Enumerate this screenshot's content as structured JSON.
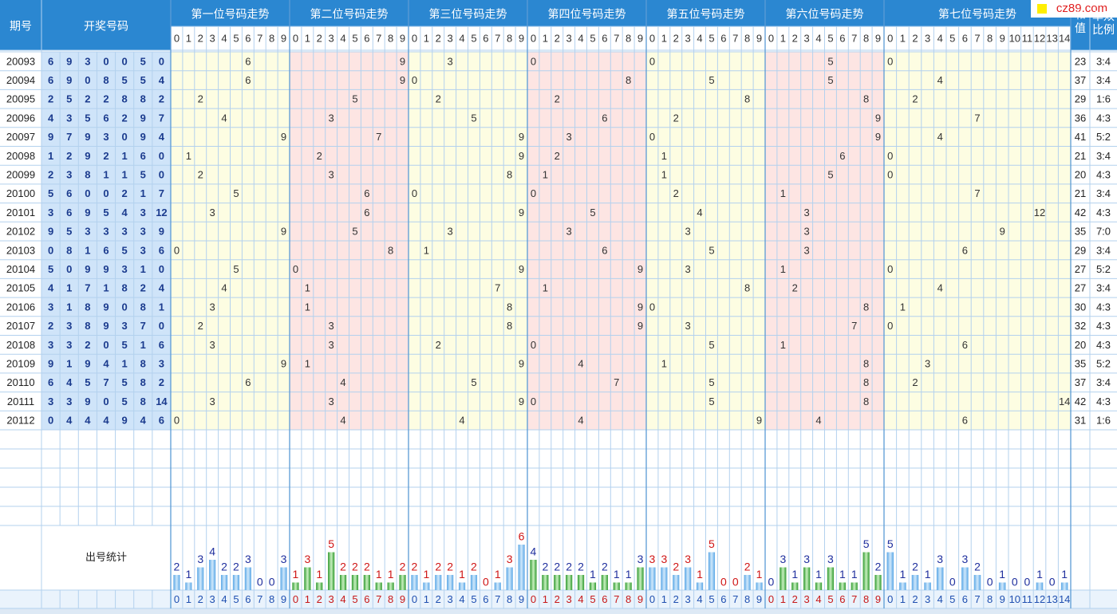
{
  "header": {
    "issue": "期号",
    "draw": "开奖号码",
    "sections": [
      "第一位号码走势",
      "第二位号码走势",
      "第三位号码走势",
      "第四位号码走势",
      "第五位号码走势",
      "第六位号码走势",
      "第七位号码走势"
    ],
    "sum": "和值",
    "ratio": "单双比例"
  },
  "column_digits": [
    [
      0,
      1,
      2,
      3,
      4,
      5,
      6,
      7,
      8,
      9
    ],
    [
      0,
      1,
      2,
      3,
      4,
      5,
      6,
      7,
      8,
      9
    ],
    [
      0,
      1,
      2,
      3,
      4,
      5,
      6,
      7,
      8,
      9
    ],
    [
      0,
      1,
      2,
      3,
      4,
      5,
      6,
      7,
      8,
      9
    ],
    [
      0,
      1,
      2,
      3,
      4,
      5,
      6,
      7,
      8,
      9
    ],
    [
      0,
      1,
      2,
      3,
      4,
      5,
      6,
      7,
      8,
      9
    ],
    [
      0,
      1,
      2,
      3,
      4,
      5,
      6,
      7,
      8,
      9,
      10,
      11,
      12,
      13,
      14
    ]
  ],
  "rows": [
    {
      "issue": "20093",
      "numbers": [
        6,
        9,
        3,
        0,
        0,
        5,
        0
      ],
      "sum": 23,
      "ratio": "3:4"
    },
    {
      "issue": "20094",
      "numbers": [
        6,
        9,
        0,
        8,
        5,
        5,
        4
      ],
      "sum": 37,
      "ratio": "3:4"
    },
    {
      "issue": "20095",
      "numbers": [
        2,
        5,
        2,
        2,
        8,
        8,
        2
      ],
      "sum": 29,
      "ratio": "1:6"
    },
    {
      "issue": "20096",
      "numbers": [
        4,
        3,
        5,
        6,
        2,
        9,
        7
      ],
      "sum": 36,
      "ratio": "4:3"
    },
    {
      "issue": "20097",
      "numbers": [
        9,
        7,
        9,
        3,
        0,
        9,
        4
      ],
      "sum": 41,
      "ratio": "5:2"
    },
    {
      "issue": "20098",
      "numbers": [
        1,
        2,
        9,
        2,
        1,
        6,
        0
      ],
      "sum": 21,
      "ratio": "3:4"
    },
    {
      "issue": "20099",
      "numbers": [
        2,
        3,
        8,
        1,
        1,
        5,
        0
      ],
      "sum": 20,
      "ratio": "4:3"
    },
    {
      "issue": "20100",
      "numbers": [
        5,
        6,
        0,
        0,
        2,
        1,
        7
      ],
      "sum": 21,
      "ratio": "3:4"
    },
    {
      "issue": "20101",
      "numbers": [
        3,
        6,
        9,
        5,
        4,
        3,
        12
      ],
      "sum": 42,
      "ratio": "4:3"
    },
    {
      "issue": "20102",
      "numbers": [
        9,
        5,
        3,
        3,
        3,
        3,
        9
      ],
      "sum": 35,
      "ratio": "7:0"
    },
    {
      "issue": "20103",
      "numbers": [
        0,
        8,
        1,
        6,
        5,
        3,
        6
      ],
      "sum": 29,
      "ratio": "3:4"
    },
    {
      "issue": "20104",
      "numbers": [
        5,
        0,
        9,
        9,
        3,
        1,
        0
      ],
      "sum": 27,
      "ratio": "5:2"
    },
    {
      "issue": "20105",
      "numbers": [
        4,
        1,
        7,
        1,
        8,
        2,
        4
      ],
      "sum": 27,
      "ratio": "3:4"
    },
    {
      "issue": "20106",
      "numbers": [
        3,
        1,
        8,
        9,
        0,
        8,
        1
      ],
      "sum": 30,
      "ratio": "4:3"
    },
    {
      "issue": "20107",
      "numbers": [
        2,
        3,
        8,
        9,
        3,
        7,
        0
      ],
      "sum": 32,
      "ratio": "4:3"
    },
    {
      "issue": "20108",
      "numbers": [
        3,
        3,
        2,
        0,
        5,
        1,
        6
      ],
      "sum": 20,
      "ratio": "4:3"
    },
    {
      "issue": "20109",
      "numbers": [
        9,
        1,
        9,
        4,
        1,
        8,
        3
      ],
      "sum": 35,
      "ratio": "5:2"
    },
    {
      "issue": "20110",
      "numbers": [
        6,
        4,
        5,
        7,
        5,
        8,
        2
      ],
      "sum": 37,
      "ratio": "3:4"
    },
    {
      "issue": "20111",
      "numbers": [
        3,
        3,
        9,
        0,
        5,
        8,
        14
      ],
      "sum": 42,
      "ratio": "4:3"
    },
    {
      "issue": "20112",
      "numbers": [
        0,
        4,
        4,
        4,
        9,
        4,
        6
      ],
      "sum": 31,
      "ratio": "1:6"
    }
  ],
  "stats": {
    "label": "出号统计",
    "counts": [
      [
        2,
        1,
        3,
        4,
        2,
        2,
        3,
        0,
        0,
        3
      ],
      [
        1,
        3,
        1,
        5,
        2,
        2,
        2,
        1,
        1,
        2
      ],
      [
        2,
        1,
        2,
        2,
        1,
        2,
        0,
        1,
        3,
        6
      ],
      [
        4,
        2,
        2,
        2,
        2,
        1,
        2,
        1,
        1,
        3
      ],
      [
        3,
        3,
        2,
        3,
        1,
        5,
        0,
        0,
        2,
        1
      ],
      [
        0,
        3,
        1,
        3,
        1,
        3,
        1,
        1,
        5,
        2
      ],
      [
        5,
        1,
        2,
        1,
        3,
        0,
        3,
        2,
        0,
        1,
        0,
        0,
        1,
        0,
        1
      ]
    ]
  },
  "watermark": "cz89.com"
}
